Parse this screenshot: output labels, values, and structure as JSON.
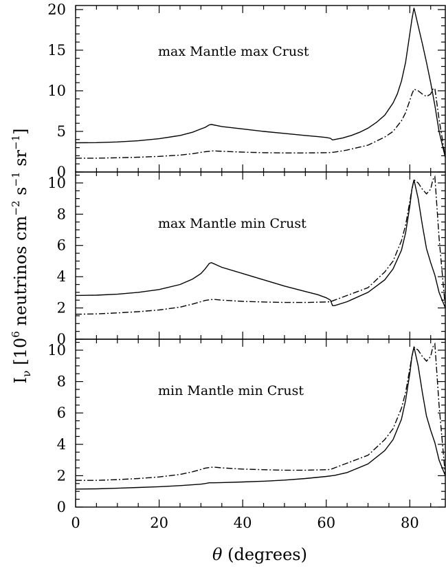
{
  "chart_data": [
    {
      "type": "line",
      "title": "",
      "annotation": "max Mantle max Crust",
      "xlabel": "",
      "ylabel": "",
      "xlim": [
        0,
        88.5
      ],
      "ylim": [
        0,
        20.5
      ],
      "y_major_ticks": [
        0,
        5,
        10,
        15,
        20
      ],
      "y_tick_labels": [
        "0",
        "5",
        "10",
        "15",
        "20"
      ],
      "y_minor_step": 1,
      "x_major_ticks": [
        0,
        20,
        40,
        60,
        80
      ],
      "x_minor_step": 5,
      "series": [
        {
          "style": "solid",
          "x": [
            0,
            5,
            10,
            15,
            20,
            25,
            28,
            30,
            31,
            32,
            32.5,
            35,
            40,
            45,
            50,
            55,
            58,
            60,
            61,
            61.5,
            62,
            64,
            66,
            68,
            70,
            72,
            74,
            76,
            77,
            78,
            79,
            80,
            80.5,
            81,
            82,
            83,
            84,
            85,
            86,
            87,
            88.5
          ],
          "y": [
            3.6,
            3.62,
            3.7,
            3.85,
            4.1,
            4.5,
            4.9,
            5.3,
            5.5,
            5.8,
            5.85,
            5.6,
            5.3,
            5.0,
            4.75,
            4.5,
            4.35,
            4.25,
            4.15,
            3.95,
            4.0,
            4.2,
            4.5,
            4.9,
            5.4,
            6.1,
            7.0,
            8.5,
            9.6,
            11.2,
            13.5,
            17.0,
            18.8,
            20.2,
            18.0,
            15.8,
            13.5,
            11.0,
            8.2,
            5.0,
            1.8
          ]
        },
        {
          "style": "dash-dot",
          "x": [
            0,
            5,
            10,
            15,
            20,
            25,
            28,
            30,
            31,
            32,
            33,
            35,
            40,
            45,
            50,
            55,
            60,
            61,
            62,
            65,
            70,
            74,
            76,
            78,
            79,
            80,
            80.5,
            81,
            82,
            83,
            84,
            85,
            85.5,
            86,
            87,
            88.5
          ],
          "y": [
            1.7,
            1.7,
            1.75,
            1.82,
            1.92,
            2.08,
            2.25,
            2.42,
            2.5,
            2.55,
            2.6,
            2.55,
            2.45,
            2.38,
            2.35,
            2.35,
            2.38,
            2.4,
            2.45,
            2.7,
            3.3,
            4.3,
            5.0,
            6.3,
            7.3,
            8.8,
            9.6,
            10.2,
            10.0,
            9.6,
            9.3,
            9.6,
            10.2,
            10.3,
            6.5,
            1.8
          ]
        }
      ]
    },
    {
      "type": "line",
      "title": "",
      "annotation": "max Mantle min Crust",
      "xlabel": "",
      "ylabel": "",
      "xlim": [
        0,
        88.5
      ],
      "ylim": [
        0,
        10.7
      ],
      "y_major_ticks": [
        0,
        2,
        4,
        6,
        8,
        10
      ],
      "y_tick_labels": [
        "0",
        "2",
        "4",
        "6",
        "8",
        "10"
      ],
      "y_minor_step": 0.5,
      "x_major_ticks": [
        0,
        20,
        40,
        60,
        80
      ],
      "x_minor_step": 5,
      "series": [
        {
          "style": "solid",
          "x": [
            0,
            5,
            10,
            15,
            20,
            25,
            28,
            30,
            31,
            32,
            32.5,
            35,
            40,
            45,
            50,
            55,
            58,
            60,
            61,
            61.5,
            62,
            65,
            70,
            74,
            76,
            78,
            79,
            80,
            80.5,
            81,
            82,
            83,
            84,
            85,
            86,
            87,
            88.5
          ],
          "y": [
            2.8,
            2.82,
            2.88,
            3.0,
            3.18,
            3.5,
            3.85,
            4.2,
            4.5,
            4.85,
            4.9,
            4.6,
            4.2,
            3.8,
            3.4,
            3.05,
            2.85,
            2.65,
            2.5,
            2.15,
            2.15,
            2.4,
            3.0,
            3.8,
            4.5,
            5.7,
            6.8,
            8.5,
            9.6,
            10.2,
            9.0,
            7.3,
            5.8,
            4.9,
            4.1,
            3.0,
            2.0
          ]
        },
        {
          "style": "dash-dot",
          "x": [
            0,
            5,
            10,
            15,
            20,
            25,
            28,
            30,
            31,
            32,
            33,
            35,
            40,
            45,
            50,
            55,
            60,
            61,
            62,
            65,
            70,
            74,
            76,
            78,
            79,
            80,
            80.5,
            81,
            82,
            83,
            84,
            85,
            85.5,
            86,
            87,
            88.5
          ],
          "y": [
            1.6,
            1.62,
            1.68,
            1.76,
            1.87,
            2.05,
            2.25,
            2.4,
            2.48,
            2.52,
            2.55,
            2.5,
            2.42,
            2.38,
            2.35,
            2.35,
            2.38,
            2.4,
            2.5,
            2.8,
            3.3,
            4.3,
            5.0,
            6.3,
            7.3,
            8.8,
            9.6,
            10.2,
            10.0,
            9.6,
            9.3,
            9.6,
            10.2,
            10.4,
            6.5,
            2.0
          ]
        }
      ]
    },
    {
      "type": "line",
      "title": "",
      "annotation": "min Mantle min Crust",
      "xlabel": "θ (degrees)",
      "ylabel": "I_ν [10^6 neutrinos cm^-2 s^-1 sr^-1]",
      "xlim": [
        0,
        88.5
      ],
      "ylim": [
        0,
        10.7
      ],
      "y_major_ticks": [
        0,
        2,
        4,
        6,
        8,
        10
      ],
      "y_tick_labels": [
        "0",
        "2",
        "4",
        "6",
        "8",
        "10"
      ],
      "y_minor_step": 0.5,
      "x_major_ticks": [
        0,
        20,
        40,
        60,
        80
      ],
      "x_tick_labels": [
        "0",
        "20",
        "40",
        "60",
        "80"
      ],
      "x_minor_step": 5,
      "series": [
        {
          "style": "solid",
          "x": [
            0,
            5,
            10,
            15,
            20,
            25,
            28,
            30,
            31,
            32,
            33,
            35,
            40,
            45,
            50,
            55,
            60,
            62,
            65,
            70,
            74,
            76,
            78,
            79,
            80,
            80.5,
            81,
            82,
            83,
            84,
            85,
            86,
            87,
            88.5
          ],
          "y": [
            1.15,
            1.16,
            1.2,
            1.25,
            1.3,
            1.37,
            1.42,
            1.46,
            1.5,
            1.55,
            1.55,
            1.56,
            1.6,
            1.65,
            1.72,
            1.82,
            1.95,
            2.02,
            2.2,
            2.75,
            3.6,
            4.3,
            5.6,
            6.8,
            8.5,
            9.6,
            10.2,
            9.0,
            7.3,
            5.8,
            4.9,
            4.1,
            3.0,
            2.0
          ]
        },
        {
          "style": "dash-dot",
          "x": [
            0,
            5,
            10,
            15,
            20,
            25,
            28,
            30,
            31,
            32,
            33,
            35,
            40,
            45,
            50,
            55,
            60,
            61,
            62,
            65,
            70,
            74,
            76,
            78,
            79,
            80,
            80.5,
            81,
            82,
            83,
            84,
            85,
            85.5,
            86,
            87,
            88.5
          ],
          "y": [
            1.7,
            1.7,
            1.75,
            1.82,
            1.92,
            2.08,
            2.25,
            2.4,
            2.48,
            2.52,
            2.55,
            2.5,
            2.42,
            2.38,
            2.35,
            2.35,
            2.38,
            2.4,
            2.5,
            2.8,
            3.3,
            4.3,
            5.0,
            6.3,
            7.3,
            8.8,
            9.6,
            10.2,
            10.0,
            9.6,
            9.3,
            9.6,
            10.2,
            10.4,
            6.5,
            2.0
          ]
        }
      ]
    }
  ],
  "labels": {
    "ylabel_main": "I",
    "ylabel_sub": "ν",
    "ylabel_open": " [10",
    "ylabel_exp1": "6",
    "ylabel_mid1": " neutrinos cm",
    "ylabel_exp2": "−2",
    "ylabel_mid2": " s",
    "ylabel_exp3": "−1",
    "ylabel_mid3": " sr",
    "ylabel_exp4": "−1",
    "ylabel_close": "]",
    "xlabel_theta": "θ",
    "xlabel_rest": " (degrees)"
  }
}
